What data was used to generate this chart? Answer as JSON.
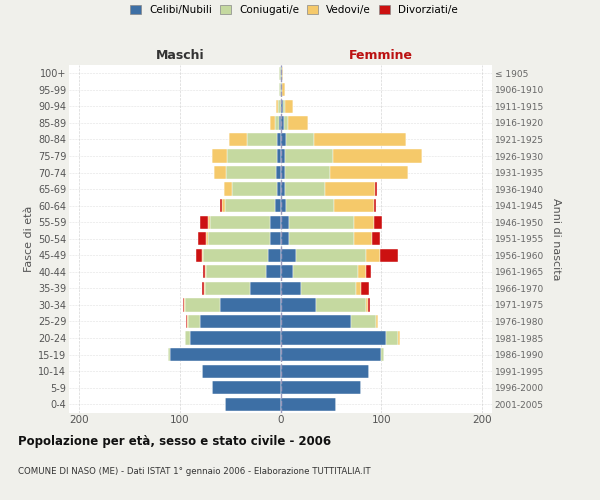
{
  "age_groups": [
    "0-4",
    "5-9",
    "10-14",
    "15-19",
    "20-24",
    "25-29",
    "30-34",
    "35-39",
    "40-44",
    "45-49",
    "50-54",
    "55-59",
    "60-64",
    "65-69",
    "70-74",
    "75-79",
    "80-84",
    "85-89",
    "90-94",
    "95-99",
    "100+"
  ],
  "birth_years": [
    "2001-2005",
    "1996-2000",
    "1991-1995",
    "1986-1990",
    "1981-1985",
    "1976-1980",
    "1971-1975",
    "1966-1970",
    "1961-1965",
    "1956-1960",
    "1951-1955",
    "1946-1950",
    "1941-1945",
    "1936-1940",
    "1931-1935",
    "1926-1930",
    "1921-1925",
    "1916-1920",
    "1911-1915",
    "1906-1910",
    "≤ 1905"
  ],
  "male_celibi": [
    55,
    68,
    78,
    110,
    90,
    80,
    60,
    30,
    14,
    12,
    10,
    10,
    5,
    3,
    4,
    3,
    3,
    1,
    0,
    0,
    0
  ],
  "male_coniugati": [
    0,
    0,
    0,
    2,
    5,
    12,
    35,
    45,
    60,
    65,
    62,
    60,
    50,
    45,
    50,
    50,
    30,
    4,
    2,
    1,
    1
  ],
  "male_vedovi": [
    0,
    0,
    0,
    0,
    0,
    1,
    1,
    1,
    1,
    1,
    2,
    2,
    3,
    8,
    12,
    15,
    18,
    5,
    2,
    0,
    0
  ],
  "male_divorziati": [
    0,
    0,
    0,
    0,
    0,
    1,
    1,
    2,
    2,
    6,
    8,
    8,
    2,
    0,
    0,
    0,
    0,
    0,
    0,
    0,
    0
  ],
  "female_nubili": [
    55,
    80,
    88,
    100,
    105,
    70,
    35,
    20,
    12,
    15,
    8,
    8,
    5,
    4,
    4,
    4,
    5,
    3,
    2,
    1,
    1
  ],
  "female_coniugate": [
    0,
    0,
    0,
    3,
    12,
    25,
    50,
    55,
    65,
    70,
    65,
    65,
    48,
    40,
    45,
    48,
    28,
    4,
    2,
    0,
    0
  ],
  "female_vedove": [
    0,
    0,
    0,
    0,
    2,
    2,
    2,
    5,
    8,
    14,
    18,
    20,
    40,
    50,
    78,
    88,
    92,
    20,
    8,
    3,
    1
  ],
  "female_divorziate": [
    0,
    0,
    0,
    0,
    0,
    0,
    2,
    8,
    5,
    18,
    8,
    8,
    2,
    2,
    0,
    0,
    0,
    0,
    0,
    0,
    0
  ],
  "colors": {
    "celibi_nubili": "#3d6fa5",
    "coniugati": "#c5d9a0",
    "vedovi": "#f5c96a",
    "divorziati": "#cc1111"
  },
  "xlim": 210,
  "xtick_vals": [
    -200,
    -100,
    0,
    100,
    200
  ],
  "title": "Popolazione per età, sesso e stato civile - 2006",
  "subtitle": "COMUNE DI NASO (ME) - Dati ISTAT 1° gennaio 2006 - Elaborazione TUTTITALIA.IT",
  "ylabel_left": "Fasce di età",
  "ylabel_right": "Anni di nascita",
  "label_maschi": "Maschi",
  "label_femmine": "Femmine",
  "legend_labels": [
    "Celibi/Nubili",
    "Coniugati/e",
    "Vedovi/e",
    "Divorziati/e"
  ],
  "bg_color": "#f0f0eb",
  "plot_bg": "#ffffff",
  "grid_color": "#cccccc",
  "center_line_color": "#9999bb"
}
